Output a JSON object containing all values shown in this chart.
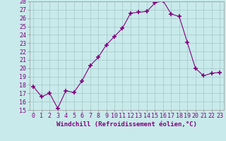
{
  "x": [
    0,
    1,
    2,
    3,
    4,
    5,
    6,
    7,
    8,
    9,
    10,
    11,
    12,
    13,
    14,
    15,
    16,
    17,
    18,
    19,
    20,
    21,
    22,
    23
  ],
  "y": [
    17.8,
    16.6,
    17.0,
    15.2,
    17.3,
    17.1,
    18.5,
    20.3,
    21.3,
    22.8,
    23.8,
    24.8,
    26.6,
    26.7,
    26.8,
    27.8,
    28.1,
    26.5,
    26.2,
    23.1,
    20.0,
    19.1,
    19.4,
    19.5
  ],
  "line_color": "#800080",
  "marker": "+",
  "marker_size": 4,
  "bg_color": "#c8eaea",
  "grid_color": "#b0d8d8",
  "xlabel": "Windchill (Refroidissement éolien,°C)",
  "xlabel_fontsize": 6.5,
  "tick_fontsize": 6.0,
  "ylim": [
    15,
    28
  ],
  "xlim": [
    -0.5,
    23.5
  ],
  "yticks": [
    15,
    16,
    17,
    18,
    19,
    20,
    21,
    22,
    23,
    24,
    25,
    26,
    27,
    28
  ],
  "xticks": [
    0,
    1,
    2,
    3,
    4,
    5,
    6,
    7,
    8,
    9,
    10,
    11,
    12,
    13,
    14,
    15,
    16,
    17,
    18,
    19,
    20,
    21,
    22,
    23
  ]
}
